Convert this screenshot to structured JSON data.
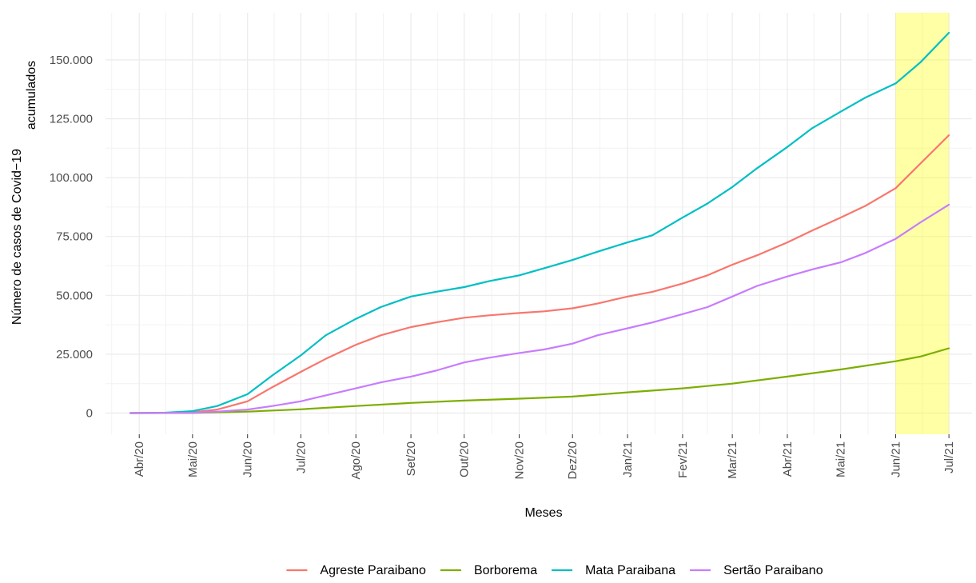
{
  "chart_data": {
    "type": "line",
    "xlabel": "Meses",
    "ylabel_lines": [
      "Número de casos de Covid−19",
      "acumulados"
    ],
    "x_tick_labels": [
      "Abr/20",
      "Mai/20",
      "Jun/20",
      "Jul/20",
      "Ago/20",
      "Set/20",
      "Out/20",
      "Nov/20",
      "Dez/20",
      "Jan/21",
      "Fev/21",
      "Mar/21",
      "Abr/21",
      "Mai/21",
      "Jun/21",
      "Jul/21"
    ],
    "x_tick_dates": [
      "2020-04-01",
      "2020-05-01",
      "2020-06-01",
      "2020-07-01",
      "2020-08-01",
      "2020-09-01",
      "2020-10-01",
      "2020-11-01",
      "2020-12-01",
      "2021-01-01",
      "2021-02-01",
      "2021-03-01",
      "2021-04-01",
      "2021-05-01",
      "2021-06-01",
      "2021-07-01"
    ],
    "xlim": [
      "2020-03-13",
      "2021-07-14"
    ],
    "y_ticks": [
      0,
      25000,
      50000,
      75000,
      100000,
      125000,
      150000
    ],
    "y_tick_labels": [
      "0",
      "25.000",
      "50.000",
      "75.000",
      "100.000",
      "125.000",
      "150.000"
    ],
    "ylim": [
      -9000,
      170000
    ],
    "grid": true,
    "legend_position": "bottom",
    "highlight": {
      "start": "2021-06-01",
      "end": "2021-07-01",
      "color": "#ffff00",
      "opacity": 0.35
    },
    "series": [
      {
        "name": "Agreste Paraibano",
        "color": "#F8766D",
        "points": [
          [
            "2020-03-27",
            0
          ],
          [
            "2020-04-15",
            50
          ],
          [
            "2020-05-01",
            300
          ],
          [
            "2020-05-15",
            1500
          ],
          [
            "2020-06-01",
            5000
          ],
          [
            "2020-06-15",
            11000
          ],
          [
            "2020-07-01",
            17500
          ],
          [
            "2020-07-15",
            23000
          ],
          [
            "2020-08-01",
            29000
          ],
          [
            "2020-08-15",
            33000
          ],
          [
            "2020-09-01",
            36500
          ],
          [
            "2020-09-15",
            38500
          ],
          [
            "2020-10-01",
            40500
          ],
          [
            "2020-10-15",
            41500
          ],
          [
            "2020-11-01",
            42500
          ],
          [
            "2020-11-15",
            43200
          ],
          [
            "2020-12-01",
            44500
          ],
          [
            "2020-12-15",
            46500
          ],
          [
            "2021-01-01",
            49500
          ],
          [
            "2021-01-15",
            51500
          ],
          [
            "2021-02-01",
            55000
          ],
          [
            "2021-02-15",
            58500
          ],
          [
            "2021-03-01",
            63000
          ],
          [
            "2021-03-15",
            67000
          ],
          [
            "2021-04-01",
            72500
          ],
          [
            "2021-04-15",
            77500
          ],
          [
            "2021-05-01",
            83000
          ],
          [
            "2021-05-15",
            88000
          ],
          [
            "2021-06-01",
            95500
          ],
          [
            "2021-06-15",
            106000
          ],
          [
            "2021-07-01",
            118000
          ]
        ]
      },
      {
        "name": "Borborema",
        "color": "#7CAE00",
        "points": [
          [
            "2020-03-27",
            0
          ],
          [
            "2020-05-01",
            50
          ],
          [
            "2020-06-01",
            600
          ],
          [
            "2020-07-01",
            1600
          ],
          [
            "2020-08-01",
            3000
          ],
          [
            "2020-09-01",
            4300
          ],
          [
            "2020-10-01",
            5300
          ],
          [
            "2020-11-01",
            6100
          ],
          [
            "2020-12-01",
            7000
          ],
          [
            "2021-01-01",
            8800
          ],
          [
            "2021-02-01",
            10500
          ],
          [
            "2021-03-01",
            12500
          ],
          [
            "2021-04-01",
            15500
          ],
          [
            "2021-05-01",
            18500
          ],
          [
            "2021-06-01",
            22000
          ],
          [
            "2021-06-15",
            24000
          ],
          [
            "2021-07-01",
            27500
          ]
        ]
      },
      {
        "name": "Mata Paraibana",
        "color": "#00BFC4",
        "points": [
          [
            "2020-03-27",
            0
          ],
          [
            "2020-04-15",
            150
          ],
          [
            "2020-05-01",
            800
          ],
          [
            "2020-05-15",
            3000
          ],
          [
            "2020-06-01",
            8000
          ],
          [
            "2020-06-15",
            16000
          ],
          [
            "2020-07-01",
            24500
          ],
          [
            "2020-07-15",
            33000
          ],
          [
            "2020-08-01",
            40000
          ],
          [
            "2020-08-15",
            45000
          ],
          [
            "2020-09-01",
            49500
          ],
          [
            "2020-09-15",
            51500
          ],
          [
            "2020-10-01",
            53500
          ],
          [
            "2020-10-15",
            56000
          ],
          [
            "2020-11-01",
            58500
          ],
          [
            "2020-11-15",
            61500
          ],
          [
            "2020-12-01",
            65000
          ],
          [
            "2020-12-15",
            68500
          ],
          [
            "2021-01-01",
            72500
          ],
          [
            "2021-01-15",
            75500
          ],
          [
            "2021-02-01",
            83000
          ],
          [
            "2021-02-15",
            89000
          ],
          [
            "2021-03-01",
            96000
          ],
          [
            "2021-03-15",
            104000
          ],
          [
            "2021-04-01",
            113000
          ],
          [
            "2021-04-15",
            121000
          ],
          [
            "2021-05-01",
            128000
          ],
          [
            "2021-05-15",
            134000
          ],
          [
            "2021-06-01",
            140000
          ],
          [
            "2021-06-15",
            149000
          ],
          [
            "2021-07-01",
            161500
          ]
        ]
      },
      {
        "name": "Sertão Paraibano",
        "color": "#C77CFF",
        "points": [
          [
            "2020-03-27",
            0
          ],
          [
            "2020-04-15",
            20
          ],
          [
            "2020-05-01",
            150
          ],
          [
            "2020-05-15",
            600
          ],
          [
            "2020-06-01",
            1500
          ],
          [
            "2020-06-15",
            3000
          ],
          [
            "2020-07-01",
            5000
          ],
          [
            "2020-07-15",
            7500
          ],
          [
            "2020-08-01",
            10500
          ],
          [
            "2020-08-15",
            13000
          ],
          [
            "2020-09-01",
            15500
          ],
          [
            "2020-09-15",
            18000
          ],
          [
            "2020-10-01",
            21500
          ],
          [
            "2020-10-15",
            23500
          ],
          [
            "2020-11-01",
            25500
          ],
          [
            "2020-11-15",
            27000
          ],
          [
            "2020-12-01",
            29500
          ],
          [
            "2020-12-15",
            33000
          ],
          [
            "2021-01-01",
            36000
          ],
          [
            "2021-01-15",
            38500
          ],
          [
            "2021-02-01",
            42000
          ],
          [
            "2021-02-15",
            45000
          ],
          [
            "2021-03-01",
            49500
          ],
          [
            "2021-03-15",
            54000
          ],
          [
            "2021-04-01",
            58000
          ],
          [
            "2021-04-15",
            61000
          ],
          [
            "2021-05-01",
            64000
          ],
          [
            "2021-05-15",
            68000
          ],
          [
            "2021-06-01",
            74000
          ],
          [
            "2021-06-15",
            81000
          ],
          [
            "2021-07-01",
            88500
          ]
        ]
      }
    ]
  }
}
